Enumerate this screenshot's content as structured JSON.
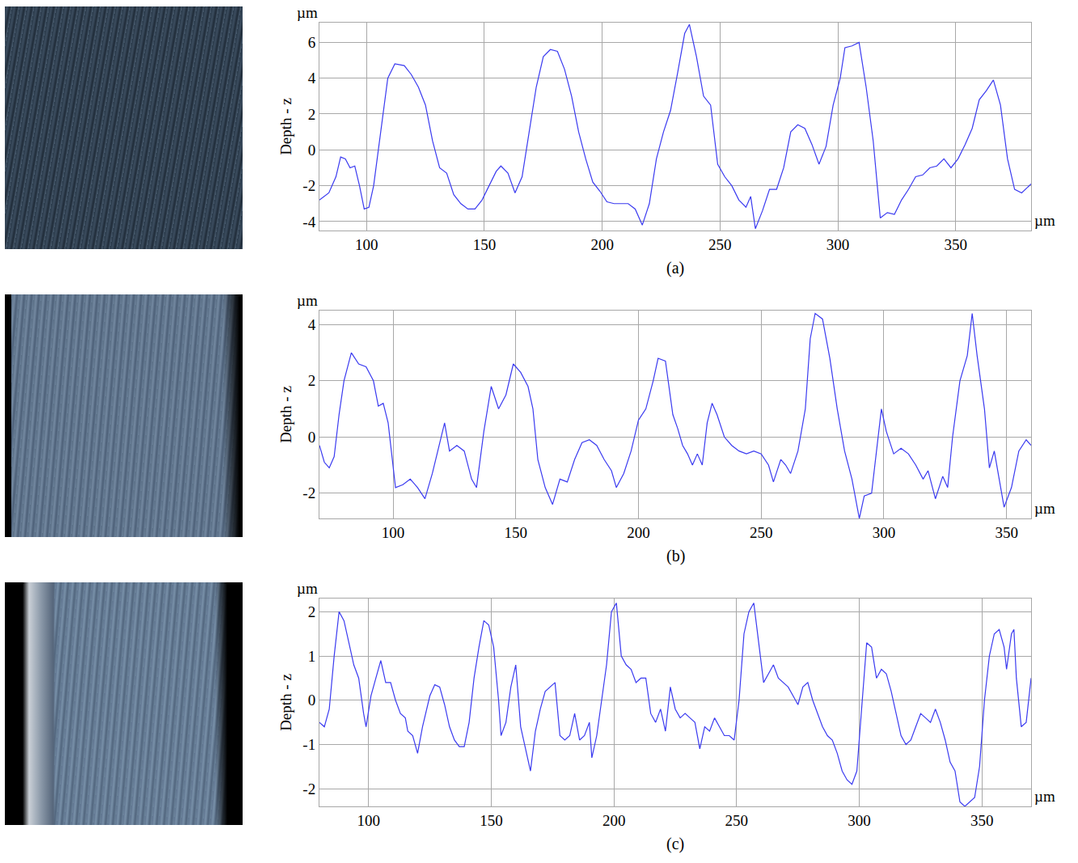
{
  "chart_data": [
    {
      "type": "line",
      "title": "(a)",
      "xlabel": "µm",
      "ylabel": "Depth - z",
      "annotations": [
        "µm"
      ],
      "color": "#3b3bf0",
      "grid": true,
      "xlim": [
        80,
        382
      ],
      "xticks": [
        100,
        150,
        200,
        250,
        300,
        350
      ],
      "ylim": [
        -4.5,
        7.1
      ],
      "yticks": [
        -4,
        -2,
        0,
        2,
        4,
        6
      ],
      "x": [
        80,
        84,
        87,
        89,
        91,
        93,
        95,
        97,
        99,
        101,
        103,
        106,
        109,
        112,
        116,
        119,
        122,
        125,
        128,
        131,
        134,
        137,
        140,
        143,
        146,
        149,
        152,
        155,
        157,
        160,
        163,
        166,
        169,
        172,
        175,
        178,
        181,
        184,
        187,
        190,
        193,
        196,
        199,
        202,
        205,
        208,
        211,
        214,
        217,
        220,
        223,
        226,
        229,
        232,
        235,
        237,
        240,
        243,
        246,
        249,
        252,
        255,
        258,
        261,
        263,
        265,
        268,
        271,
        274,
        277,
        280,
        283,
        286,
        289,
        292,
        295,
        298,
        301,
        303,
        306,
        309,
        312,
        315,
        318,
        321,
        324,
        327,
        330,
        333,
        336,
        339,
        342,
        345,
        348,
        351,
        354,
        357,
        360,
        363,
        366,
        369,
        372,
        375,
        378,
        381,
        382
      ],
      "values": [
        -2.8,
        -2.4,
        -1.5,
        -0.4,
        -0.5,
        -1.0,
        -0.9,
        -2.0,
        -3.3,
        -3.2,
        -2.0,
        1.0,
        4.0,
        4.8,
        4.7,
        4.2,
        3.5,
        2.5,
        0.5,
        -1.0,
        -1.3,
        -2.5,
        -3.0,
        -3.3,
        -3.3,
        -2.8,
        -2.0,
        -1.2,
        -0.9,
        -1.3,
        -2.4,
        -1.5,
        1.0,
        3.5,
        5.2,
        5.6,
        5.5,
        4.5,
        3.0,
        1.0,
        -0.5,
        -1.8,
        -2.3,
        -2.9,
        -3.0,
        -3.0,
        -3.0,
        -3.3,
        -4.2,
        -3.0,
        -0.5,
        1.0,
        2.2,
        4.3,
        6.5,
        7.0,
        5.2,
        3.0,
        2.5,
        -0.8,
        -1.5,
        -2.0,
        -2.8,
        -3.2,
        -2.6,
        -4.4,
        -3.4,
        -2.2,
        -2.2,
        -1.0,
        1.0,
        1.4,
        1.2,
        0.3,
        -0.8,
        0.2,
        2.5,
        4.0,
        5.7,
        5.8,
        6.0,
        3.5,
        0.5,
        -3.8,
        -3.5,
        -3.6,
        -2.8,
        -2.2,
        -1.5,
        -1.4,
        -1.0,
        -0.9,
        -0.5,
        -1.0,
        -0.5,
        0.3,
        1.2,
        2.8,
        3.3,
        3.9,
        2.5,
        -0.5,
        -2.2,
        -2.4,
        -2.0,
        -1.9
      ]
    },
    {
      "type": "line",
      "title": "(b)",
      "xlabel": "µm",
      "ylabel": "Depth - z",
      "annotations": [
        "µm"
      ],
      "color": "#3b3bf0",
      "grid": true,
      "xlim": [
        70,
        360
      ],
      "xticks": [
        100,
        150,
        200,
        250,
        300,
        350
      ],
      "ylim": [
        -2.9,
        4.5
      ],
      "yticks": [
        -2,
        0,
        2,
        4
      ],
      "x": [
        70,
        72,
        74,
        76,
        78,
        80,
        83,
        86,
        89,
        92,
        94,
        96,
        98,
        101,
        104,
        107,
        110,
        113,
        116,
        119,
        121,
        123,
        126,
        129,
        132,
        134,
        137,
        140,
        143,
        146,
        149,
        152,
        155,
        157,
        159,
        162,
        165,
        168,
        171,
        174,
        177,
        180,
        183,
        186,
        189,
        191,
        194,
        197,
        200,
        203,
        206,
        208,
        211,
        214,
        216,
        218,
        220,
        222,
        224,
        226,
        228,
        230,
        232,
        235,
        238,
        241,
        244,
        247,
        250,
        253,
        255,
        258,
        260,
        262,
        265,
        268,
        270,
        272,
        275,
        278,
        281,
        284,
        287,
        290,
        292,
        295,
        297,
        299,
        301,
        304,
        307,
        310,
        313,
        316,
        318,
        321,
        324,
        326,
        328,
        331,
        334,
        336,
        338,
        341,
        343,
        345,
        347,
        349,
        352,
        355,
        358,
        360
      ],
      "values": [
        -0.3,
        -0.9,
        -1.1,
        -0.7,
        0.8,
        2.0,
        3.0,
        2.6,
        2.5,
        2.0,
        1.1,
        1.2,
        0.5,
        -1.8,
        -1.7,
        -1.5,
        -1.8,
        -2.2,
        -1.3,
        -0.2,
        0.5,
        -0.5,
        -0.3,
        -0.5,
        -1.5,
        -1.8,
        0.2,
        1.8,
        1.0,
        1.5,
        2.6,
        2.3,
        1.8,
        1.0,
        -0.8,
        -1.8,
        -2.4,
        -1.5,
        -1.6,
        -0.8,
        -0.2,
        -0.1,
        -0.3,
        -0.8,
        -1.2,
        -1.8,
        -1.3,
        -0.5,
        0.6,
        1.0,
        2.0,
        2.8,
        2.7,
        0.8,
        0.3,
        -0.3,
        -0.6,
        -1.0,
        -0.6,
        -1.0,
        0.5,
        1.2,
        0.8,
        0.0,
        -0.3,
        -0.5,
        -0.6,
        -0.5,
        -0.6,
        -1.0,
        -1.6,
        -0.8,
        -1.0,
        -1.3,
        -0.5,
        1.0,
        3.5,
        4.4,
        4.2,
        2.8,
        1.0,
        -0.5,
        -1.5,
        -2.9,
        -2.1,
        -2.0,
        -0.5,
        1.0,
        0.2,
        -0.6,
        -0.4,
        -0.6,
        -1.0,
        -1.5,
        -1.2,
        -2.2,
        -1.4,
        -1.8,
        0.0,
        2.0,
        2.9,
        4.4,
        2.9,
        1.0,
        -1.1,
        -0.5,
        -1.5,
        -2.5,
        -1.8,
        -0.5,
        -0.1,
        -0.3
      ]
    },
    {
      "type": "line",
      "title": "(c)",
      "xlabel": "µm",
      "ylabel": "Depth - z",
      "annotations": [
        "µm"
      ],
      "color": "#3b3bf0",
      "grid": true,
      "xlim": [
        80,
        370
      ],
      "xticks": [
        100,
        150,
        200,
        250,
        300,
        350
      ],
      "ylim": [
        -2.4,
        2.3
      ],
      "yticks": [
        -2,
        -1,
        0,
        1,
        2
      ],
      "x": [
        80,
        82,
        84,
        86,
        88,
        90,
        92,
        94,
        96,
        98,
        99,
        101,
        103,
        105,
        107,
        109,
        111,
        113,
        115,
        116,
        118,
        120,
        122,
        125,
        127,
        129,
        131,
        133,
        135,
        137,
        139,
        141,
        143,
        145,
        147,
        149,
        151,
        153,
        154,
        156,
        158,
        160,
        162,
        164,
        166,
        168,
        170,
        172,
        174,
        176,
        178,
        180,
        182,
        184,
        186,
        188,
        190,
        191,
        193,
        195,
        197,
        199,
        201,
        203,
        205,
        207,
        209,
        211,
        213,
        215,
        217,
        219,
        221,
        223,
        225,
        227,
        229,
        231,
        233,
        235,
        237,
        239,
        241,
        243,
        245,
        247,
        249,
        251,
        253,
        255,
        257,
        259,
        261,
        263,
        265,
        267,
        269,
        271,
        273,
        275,
        277,
        279,
        281,
        283,
        285,
        287,
        289,
        291,
        293,
        295,
        297,
        299,
        301,
        303,
        305,
        307,
        309,
        311,
        313,
        315,
        317,
        319,
        321,
        323,
        325,
        327,
        329,
        331,
        333,
        335,
        337,
        339,
        341,
        343,
        345,
        347,
        349,
        351,
        353,
        355,
        357,
        359,
        360,
        362,
        363,
        364,
        366,
        368,
        370
      ],
      "values": [
        -0.5,
        -0.6,
        -0.2,
        1.0,
        2.0,
        1.8,
        1.3,
        0.8,
        0.5,
        -0.3,
        -0.6,
        0.1,
        0.5,
        0.9,
        0.4,
        0.4,
        0.0,
        -0.3,
        -0.4,
        -0.7,
        -0.8,
        -1.2,
        -0.6,
        0.1,
        0.35,
        0.3,
        -0.1,
        -0.6,
        -0.9,
        -1.05,
        -1.05,
        -0.5,
        0.5,
        1.2,
        1.8,
        1.7,
        1.2,
        0.0,
        -0.8,
        -0.5,
        0.3,
        0.8,
        -0.6,
        -1.1,
        -1.6,
        -0.7,
        -0.2,
        0.2,
        0.3,
        0.4,
        -0.8,
        -0.9,
        -0.8,
        -0.3,
        -0.9,
        -0.8,
        -0.5,
        -1.3,
        -0.8,
        0.0,
        0.8,
        2.0,
        2.2,
        1.0,
        0.8,
        0.7,
        0.4,
        0.5,
        0.5,
        -0.3,
        -0.5,
        -0.2,
        -0.7,
        0.3,
        -0.2,
        -0.4,
        -0.3,
        -0.4,
        -0.5,
        -1.1,
        -0.6,
        -0.7,
        -0.4,
        -0.6,
        -0.8,
        -0.8,
        -0.9,
        0.0,
        1.5,
        2.0,
        2.2,
        1.3,
        0.4,
        0.6,
        0.8,
        0.5,
        0.4,
        0.3,
        0.1,
        -0.1,
        0.3,
        0.4,
        0.0,
        -0.3,
        -0.6,
        -0.8,
        -0.9,
        -1.2,
        -1.6,
        -1.8,
        -1.9,
        -1.6,
        -0.2,
        1.3,
        1.2,
        0.5,
        0.7,
        0.6,
        0.2,
        -0.3,
        -0.8,
        -1.0,
        -0.9,
        -0.6,
        -0.3,
        -0.4,
        -0.5,
        -0.2,
        -0.5,
        -0.9,
        -1.4,
        -1.6,
        -2.3,
        -2.4,
        -2.3,
        -2.2,
        -1.5,
        0.0,
        1.0,
        1.5,
        1.6,
        1.2,
        0.7,
        1.5,
        1.6,
        0.5,
        -0.6,
        -0.5,
        0.5
      ]
    }
  ]
}
